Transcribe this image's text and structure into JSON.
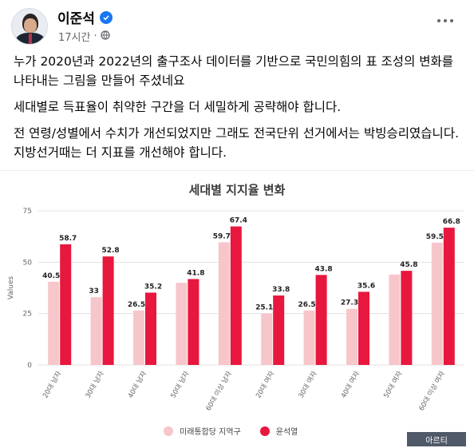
{
  "post": {
    "author": "이준석",
    "time": "17시간",
    "paragraphs": [
      "누가 2020년과 2022년의 출구조사 데이터를 기반으로 국민의힘의 표 조성의 변화를 나타내는 그림을 만들어 주셨네요",
      "세대별로 득표율이 취약한 구간을 더 세밀하게 공략해야 합니다.",
      "전 연령/성별에서 수치가 개선되었지만 그래도 전국단위 선거에서는 박빙승리였습니다. 지방선거때는 더 지표를 개선해야 합니다."
    ]
  },
  "icons": {
    "verified": "verified-badge-icon",
    "privacy": "globe-icon",
    "more": "more-options-icon",
    "watermark": "watermark-logo"
  },
  "colors": {
    "series_2020": "#f7c6cb",
    "series_2022": "#e8173e",
    "verified": "#1877f2"
  },
  "watermark_text": "아르티",
  "chart_data": {
    "type": "bar",
    "title": "세대별 지지율 변화",
    "ylabel": "Values",
    "xlabel": "",
    "ylim": [
      0,
      75
    ],
    "yticks": [
      0,
      25,
      50,
      75
    ],
    "grid": true,
    "legend_position": "bottom",
    "categories": [
      "20대 남자",
      "30대 남자",
      "40대 남자",
      "50대 남자",
      "60대 이상 남자",
      "20대 여자",
      "30대 여자",
      "40대 여자",
      "50대 여자",
      "60대 이상 여자"
    ],
    "series": [
      {
        "name": "미래통합당 지역구",
        "values": [
          40.5,
          33,
          26.5,
          40,
          59.7,
          25.1,
          26.5,
          27.3,
          44,
          59.5
        ],
        "labels": [
          "40.5",
          "33",
          "26.5",
          "",
          "59.7",
          "25.1",
          "26.5",
          "27.3",
          "",
          "59.5"
        ]
      },
      {
        "name": "윤석열",
        "values": [
          58.7,
          52.8,
          35.2,
          41.8,
          67.4,
          33.8,
          43.8,
          35.6,
          45.8,
          66.8
        ],
        "labels": [
          "58.7",
          "52.8",
          "35.2",
          "41.8",
          "67.4",
          "33.8",
          "43.8",
          "35.6",
          "45.8",
          "66.8"
        ]
      }
    ]
  }
}
